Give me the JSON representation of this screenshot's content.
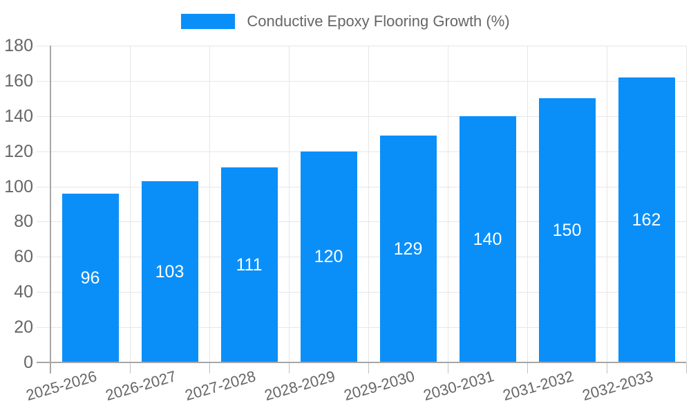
{
  "chart_data": {
    "type": "bar",
    "title": "",
    "legend_position": "top",
    "legend": [
      {
        "label": "Conductive Epoxy Flooring Growth (%)",
        "color": "#0a8ff9"
      }
    ],
    "categories": [
      "2025-2026",
      "2026-2027",
      "2027-2028",
      "2028-2029",
      "2029-2030",
      "2030-2031",
      "2031-2032",
      "2032-2033"
    ],
    "series": [
      {
        "name": "Conductive Epoxy Flooring Growth (%)",
        "values": [
          96,
          103,
          111,
          120,
          129,
          140,
          150,
          162
        ]
      }
    ],
    "bar_value_labels": [
      "96",
      "103",
      "111",
      "120",
      "129",
      "140",
      "150",
      "162"
    ],
    "xlabel": "",
    "ylabel": "",
    "ylim": [
      0,
      180
    ],
    "ytick_step": 20,
    "ytick_labels": [
      "0",
      "20",
      "40",
      "60",
      "80",
      "100",
      "120",
      "140",
      "160",
      "180"
    ],
    "grid": true,
    "colors": {
      "bar": "#0a8ff9",
      "grid": "#e6e6e6",
      "axis": "#a6a6a6",
      "tick": "#c2c2c2",
      "text": "#666666",
      "bar_label": "#ffffff",
      "background": "#ffffff"
    }
  }
}
